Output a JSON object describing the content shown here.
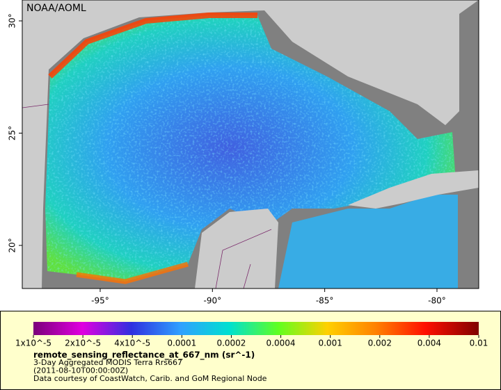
{
  "map": {
    "attribution": "NOAA/AOML",
    "xlim": [
      -98.47,
      -78.14
    ],
    "ylim": [
      18.08,
      30.93
    ],
    "xticks": [
      {
        "value": -95,
        "label": "-95°"
      },
      {
        "value": -90,
        "label": "-90°"
      },
      {
        "value": -85,
        "label": "-85°"
      },
      {
        "value": -80,
        "label": "-80°"
      }
    ],
    "yticks": [
      {
        "value": 20,
        "label": "20°"
      },
      {
        "value": 25,
        "label": "25°"
      },
      {
        "value": 30,
        "label": "30°"
      }
    ]
  },
  "colorbar": {
    "scale": "log",
    "lim": [
      1e-05,
      0.01
    ],
    "ticks": [
      {
        "value": 1e-05,
        "label": "1x10^-5"
      },
      {
        "value": 2e-05,
        "label": "2x10^-5"
      },
      {
        "value": 4e-05,
        "label": "4x10^-5"
      },
      0.0001,
      0.0002,
      0.0004,
      0.001,
      0.002,
      0.004,
      0.01
    ],
    "variable": "remote_sensing_reflectance_at_667_nm (sr^-1)",
    "lines": [
      "3-Day Aggregated MODIS Terra Rrs667",
      "(2011-08-10T00:00:00Z)",
      "Data courtesy of CoastWatch, Carib. and GoM Regional Node"
    ]
  }
}
